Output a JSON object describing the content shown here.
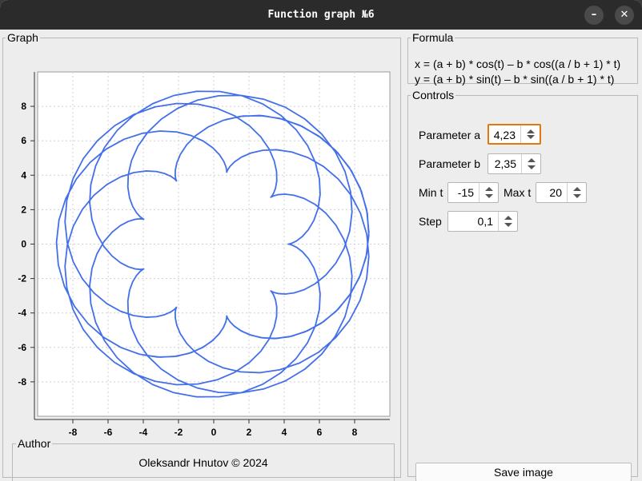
{
  "window": {
    "title": "Function graph №6",
    "minimize_icon": "minimize-icon",
    "close_icon": "close-icon",
    "minimize_glyph": "–",
    "close_glyph": "✕"
  },
  "graph": {
    "legend": "Graph",
    "line_color": "#2f5fe6",
    "grid": true,
    "xlim": [
      -10,
      10
    ],
    "ylim": [
      -10,
      10
    ],
    "x_ticks": [
      "-8",
      "-6",
      "-4",
      "-2",
      "0",
      "2",
      "4",
      "6",
      "8"
    ],
    "y_ticks": [
      "8",
      "6",
      "4",
      "2",
      "0",
      "-2",
      "-4",
      "-6",
      "-8"
    ]
  },
  "chart_data": {
    "type": "line",
    "title": "",
    "xlabel": "",
    "ylabel": "",
    "curve": "epicycloid",
    "a": 4.23,
    "b": 2.35,
    "t_min": -15,
    "t_max": 20,
    "t_step": 0.1,
    "xlim": [
      -10,
      10
    ],
    "ylim": [
      -10,
      10
    ],
    "grid": true
  },
  "author": {
    "legend": "Author",
    "text": "Oleksandr Hnutov © 2024"
  },
  "formula": {
    "legend": "Formula",
    "x_line": "x = (a + b) * cos(t) – b * cos((a / b + 1) * t)",
    "y_line": "y = (a + b) * sin(t) – b * sin((a / b + 1) * t)"
  },
  "controls": {
    "legend": "Controls",
    "param_a_label": "Parameter a",
    "param_a_value": "4,23",
    "param_b_label": "Parameter b",
    "param_b_value": "2,35",
    "min_t_label": "Min t",
    "min_t_value": "-15",
    "max_t_label": "Max t",
    "max_t_value": "20",
    "step_label": "Step",
    "step_value": "0,1",
    "save_label": "Save image"
  },
  "colors": {
    "titlebar": "#2b2b2b",
    "focus_outline": "#e07a10"
  }
}
